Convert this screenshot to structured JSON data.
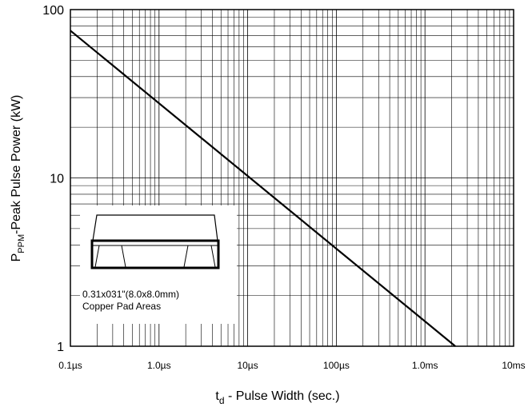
{
  "chart_data": {
    "type": "line",
    "x_scale": "log",
    "y_scale": "log",
    "xlim": [
      "0.1µs",
      "10ms"
    ],
    "ylim": [
      1,
      100
    ],
    "x_ticks": [
      "0.1µs",
      "1.0µs",
      "10µs",
      "100µs",
      "1.0ms",
      "10ms"
    ],
    "y_ticks": [
      "1",
      "10",
      "100"
    ],
    "xlabel": {
      "main": "t",
      "sub": "d",
      "rest": " - Pulse Width (sec.)"
    },
    "ylabel": {
      "main": "P",
      "sub": "PPM",
      "rest": "-Peak Pulse Power (kW)"
    },
    "grid": true,
    "series": [
      {
        "x": [
          "0.1µs",
          "2.2ms"
        ],
        "y": [
          75,
          1
        ]
      }
    ],
    "inset": {
      "line1": "0.31x031\"(8.0x8.0mm)",
      "line2": "Copper Pad Areas"
    }
  }
}
